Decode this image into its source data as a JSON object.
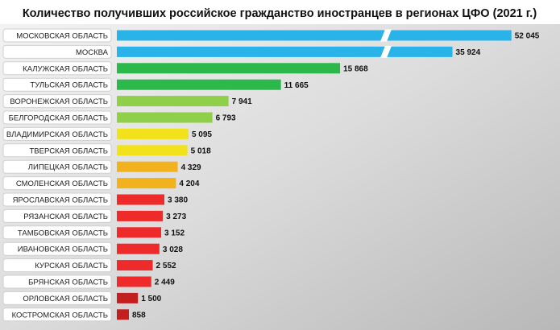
{
  "chart_data": {
    "type": "bar",
    "orientation": "horizontal",
    "title": "Количество получивших российское гражданство иностранцев в регионах ЦФО (2021 г.)",
    "categories": [
      "МОСКОВСКАЯ ОБЛАСТЬ",
      "МОСКВА",
      "КАЛУЖСКАЯ ОБЛАСТЬ",
      "ТУЛЬСКАЯ ОБЛАСТЬ",
      "ВОРОНЕЖСКАЯ ОБЛАСТЬ",
      "БЕЛГОРОДСКАЯ ОБЛАСТЬ",
      "ВЛАДИМИРСКАЯ ОБЛАСТЬ",
      "ТВЕРСКАЯ ОБЛАСТЬ",
      "ЛИПЕЦКАЯ ОБЛАСТЬ",
      "СМОЛЕНСКАЯ ОБЛАСТЬ",
      "ЯРОСЛАВСКАЯ ОБЛАСТЬ",
      "РЯЗАНСКАЯ ОБЛАСТЬ",
      "ТАМБОВСКАЯ ОБЛАСТЬ",
      "ИВАНОВСКАЯ ОБЛАСТЬ",
      "КУРСКАЯ ОБЛАСТЬ",
      "БРЯНСКАЯ ОБЛАСТЬ",
      "ОРЛОВСКАЯ ОБЛАСТЬ",
      "КОСТРОМСКАЯ ОБЛАСТЬ"
    ],
    "values": [
      52045,
      35924,
      15868,
      11665,
      7941,
      6793,
      5095,
      5018,
      4329,
      4204,
      3380,
      3273,
      3152,
      3028,
      2552,
      2449,
      1500,
      858
    ],
    "value_labels": [
      "52 045",
      "35 924",
      "15 868",
      "11 665",
      "7 941",
      "6 793",
      "5 095",
      "5 018",
      "4 329",
      "4 204",
      "3 380",
      "3 273",
      "3 152",
      "3 028",
      "2 552",
      "2 449",
      "1 500",
      "858"
    ],
    "colors": [
      "#29b3e8",
      "#29b3e8",
      "#2db84b",
      "#2db84b",
      "#8fcf4a",
      "#8fcf4a",
      "#f2e21b",
      "#f2e21b",
      "#f2b21e",
      "#f2b21e",
      "#ee2a2a",
      "#ee2a2a",
      "#ee2a2a",
      "#ee2a2a",
      "#ee2a2a",
      "#ee2a2a",
      "#c41f1f",
      "#c41f1f"
    ]
  }
}
